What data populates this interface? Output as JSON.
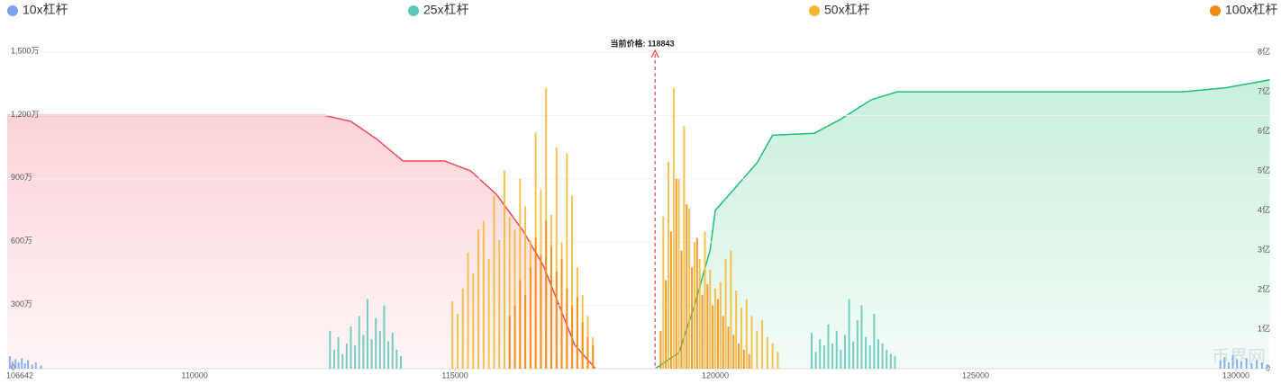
{
  "chart_data": {
    "type": "bar",
    "annotation": "当前价格: 118843",
    "current_price": 118843,
    "watermark": "币界网",
    "xlim": [
      106400,
      130657
    ],
    "xticks": [
      106642,
      110000,
      115000,
      120000,
      125000,
      130000
    ],
    "ylim": [
      0,
      1500
    ],
    "yticks": [
      0,
      {
        "value": 300,
        "label": "300万"
      },
      {
        "value": 600,
        "label": "600万"
      },
      {
        "value": 900,
        "label": "900万"
      },
      {
        "value": 1200,
        "label": "1,200万"
      },
      {
        "value": 1500,
        "label": "1,500万"
      }
    ],
    "y2lim": [
      0,
      8
    ],
    "y2ticks": [
      0,
      {
        "value": 1,
        "label": "1亿"
      },
      {
        "value": 2,
        "label": "2亿"
      },
      {
        "value": 3,
        "label": "3亿"
      },
      {
        "value": 4,
        "label": "4亿"
      },
      {
        "value": 5,
        "label": "5亿"
      },
      {
        "value": 6,
        "label": "6亿"
      },
      {
        "value": 7,
        "label": "7亿"
      },
      {
        "value": 8,
        "label": "8亿"
      }
    ],
    "grid": true,
    "series": [
      {
        "name": "10x杠杆",
        "color": "#7aa3ef",
        "x": [
          106450,
          106500,
          106560,
          106620,
          106680,
          106740,
          106800,
          106880,
          106950,
          107050,
          129700,
          129780,
          129860,
          129940,
          130020,
          130100,
          130200,
          130300,
          130400,
          130500,
          130600
        ],
        "values": [
          60,
          35,
          45,
          30,
          50,
          25,
          40,
          20,
          30,
          15,
          40,
          55,
          30,
          65,
          45,
          35,
          50,
          25,
          40,
          30,
          20
        ]
      },
      {
        "name": "25x杠杆",
        "color": "#5fc6b8",
        "x": [
          112600,
          112680,
          112760,
          112840,
          112920,
          113000,
          113080,
          113160,
          113240,
          113320,
          113400,
          113480,
          113560,
          113640,
          113720,
          113800,
          113880,
          113960,
          121850,
          121930,
          122010,
          122090,
          122170,
          122250,
          122330,
          122410,
          122490,
          122570,
          122650,
          122730,
          122810,
          122890,
          122970,
          123050,
          123130,
          123210,
          123290,
          123370,
          123450
        ],
        "values": [
          180,
          90,
          150,
          70,
          120,
          200,
          110,
          250,
          160,
          330,
          140,
          240,
          180,
          300,
          130,
          170,
          90,
          60,
          170,
          80,
          140,
          110,
          210,
          120,
          180,
          90,
          160,
          330,
          130,
          230,
          300,
          150,
          110,
          260,
          140,
          120,
          90,
          70,
          60
        ]
      },
      {
        "name": "50x杠杆",
        "color": "#f5b731",
        "x": [
          114950,
          115050,
          115150,
          115250,
          115350,
          115450,
          115550,
          115650,
          115750,
          115850,
          115950,
          116050,
          116150,
          116250,
          116350,
          116450,
          116550,
          116650,
          116750,
          116850,
          116950,
          117050,
          117150,
          117250,
          117350,
          117450,
          117550,
          117650,
          119000,
          119100,
          119200,
          119300,
          119400,
          119500,
          119600,
          119700,
          119800,
          119900,
          120000,
          120100,
          120200,
          120300,
          120400,
          120500,
          120600,
          120700,
          120800,
          120900,
          121000,
          121100,
          121200
        ],
        "values": [
          320,
          260,
          380,
          550,
          450,
          660,
          700,
          520,
          820,
          610,
          940,
          720,
          660,
          900,
          770,
          610,
          1120,
          850,
          1330,
          730,
          1050,
          600,
          1020,
          820,
          480,
          350,
          250,
          150,
          720,
          980,
          1330,
          900,
          1150,
          760,
          600,
          520,
          650,
          470,
          380,
          410,
          520,
          560,
          370,
          290,
          330,
          250,
          180,
          230,
          150,
          120,
          80
        ]
      },
      {
        "name": "100x杠杆",
        "color": "#f08a12",
        "x": [
          116050,
          116150,
          116250,
          116350,
          116450,
          116550,
          116650,
          116750,
          116850,
          116950,
          117050,
          117150,
          117250,
          117350,
          117450,
          117550,
          117650,
          118950,
          119050,
          119150,
          119250,
          119350,
          119450,
          119550,
          119650,
          119750,
          119850,
          119950,
          120050,
          120150,
          120250,
          120350,
          120450,
          120550,
          120650
        ],
        "values": [
          250,
          300,
          420,
          350,
          480,
          620,
          540,
          700,
          580,
          460,
          520,
          380,
          300,
          340,
          220,
          150,
          110,
          180,
          420,
          650,
          900,
          560,
          780,
          480,
          620,
          350,
          400,
          300,
          330,
          250,
          200,
          160,
          120,
          90,
          70
        ]
      },
      {
        "type": "line",
        "axis": "y2",
        "color": "#ee4b55",
        "x": [
          106400,
          112500,
          113000,
          113500,
          114000,
          114800,
          115300,
          115800,
          116300,
          116700,
          117000,
          117300,
          117700
        ],
        "values": [
          6.4,
          6.4,
          6.25,
          5.8,
          5.25,
          5.25,
          5.0,
          4.4,
          3.5,
          2.6,
          1.6,
          0.6,
          0
        ]
      },
      {
        "type": "line",
        "axis": "y2",
        "color": "#1fbf77",
        "x": [
          118843,
          119300,
          119600,
          119900,
          120000,
          120400,
          120800,
          121100,
          121900,
          122400,
          123000,
          123500,
          129000,
          129800,
          130650
        ],
        "values": [
          0,
          0.4,
          1.6,
          3.0,
          4.0,
          4.6,
          5.2,
          5.9,
          5.95,
          6.3,
          6.8,
          7.0,
          7.0,
          7.1,
          7.3
        ]
      }
    ]
  }
}
